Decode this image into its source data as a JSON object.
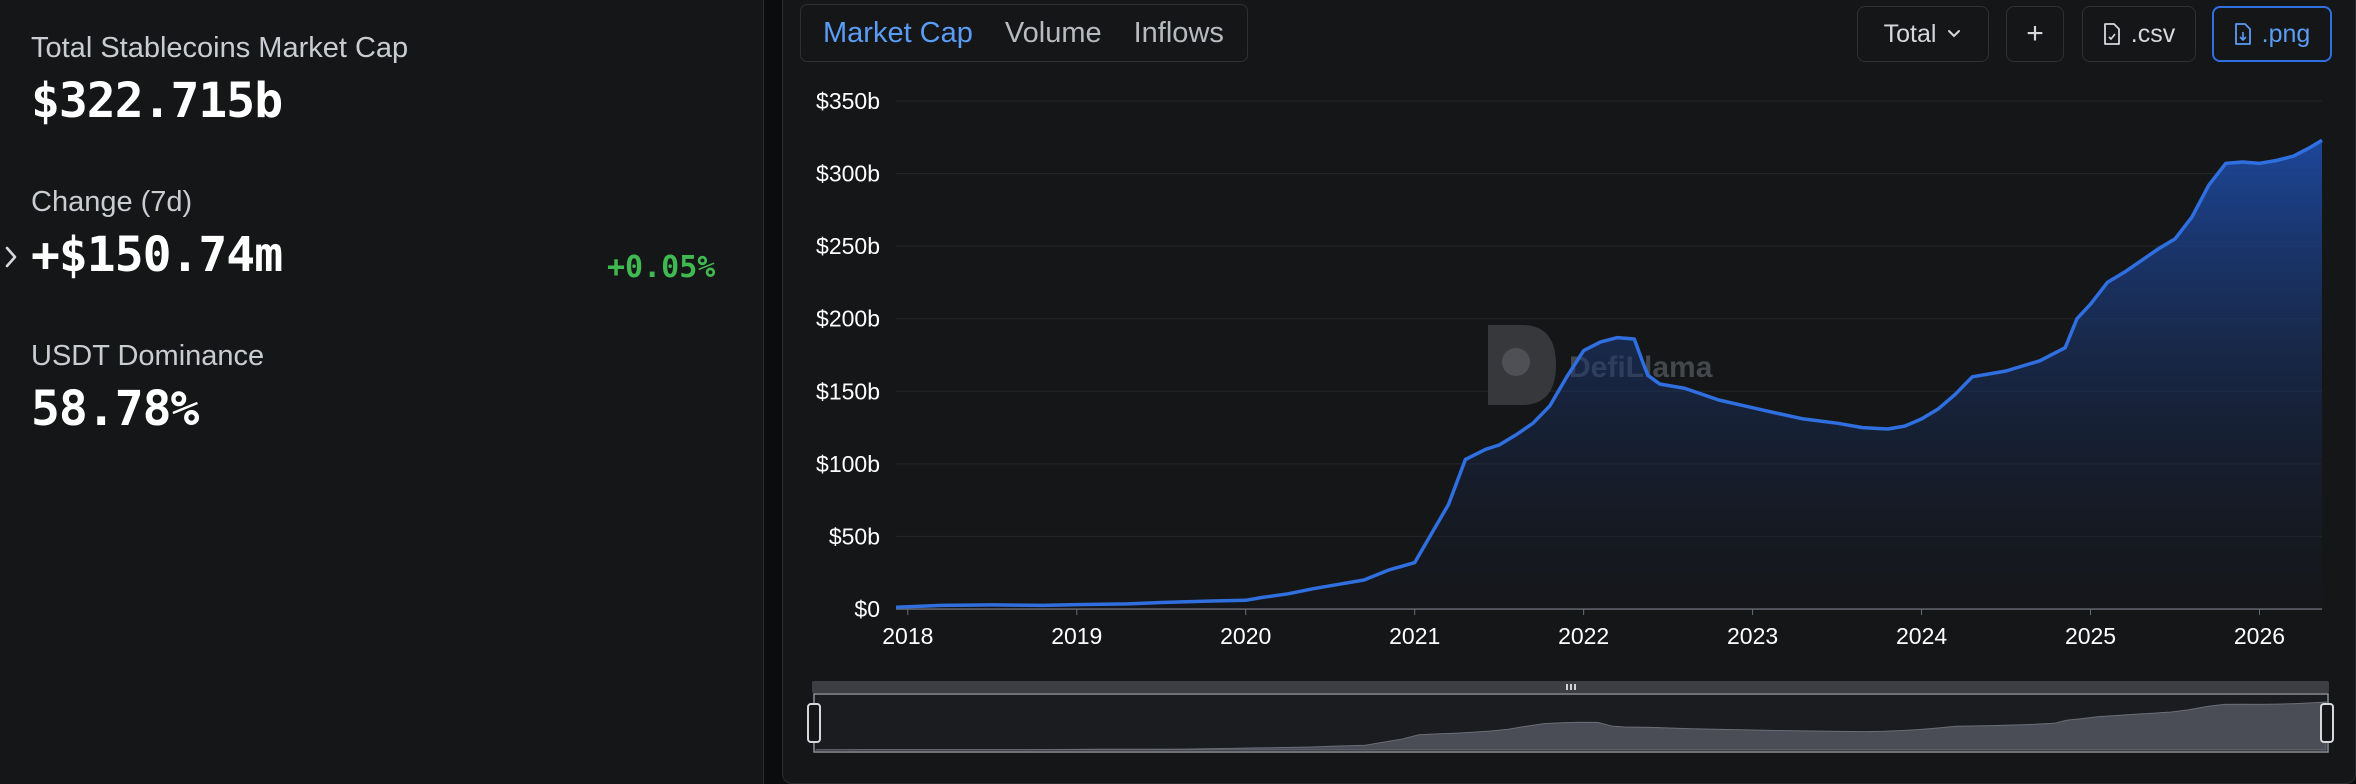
{
  "stats": {
    "market_cap": {
      "label": "Total Stablecoins Market Cap",
      "value": "$322.715b"
    },
    "change": {
      "label": "Change (7d)",
      "value": "+$150.74m",
      "pct": "+0.05%"
    },
    "dominance": {
      "label": "USDT Dominance",
      "value": "58.78%"
    }
  },
  "tabs": [
    {
      "label": "Market Cap",
      "active": true
    },
    {
      "label": "Volume",
      "active": false
    },
    {
      "label": "Inflows",
      "active": false
    }
  ],
  "controls": {
    "select_label": "Total",
    "add_label": "+",
    "csv_label": ".csv",
    "png_label": ".png"
  },
  "watermark": "DefiLlama",
  "colors": {
    "accent": "#2f6fe0",
    "line": "#2f6fe0",
    "positive": "#3fb950",
    "background": "#151618"
  },
  "chart_data": {
    "type": "area",
    "x_ticks": [
      "2018",
      "2019",
      "2020",
      "2021",
      "2022",
      "2023",
      "2024",
      "2025",
      "2026"
    ],
    "y_ticks": [
      "$0",
      "$50b",
      "$100b",
      "$150b",
      "$200b",
      "$250b",
      "$300b",
      "$350b"
    ],
    "ylim": [
      0,
      350
    ],
    "xlim": [
      2017.93,
      2026.37
    ],
    "grid": true,
    "series": [
      {
        "x": [
          2017.93,
          2018.2,
          2018.5,
          2018.8,
          2019.0,
          2019.3,
          2019.5,
          2019.8,
          2020.0,
          2020.1,
          2020.25,
          2020.4,
          2020.55,
          2020.7,
          2020.85,
          2021.0,
          2021.1,
          2021.2,
          2021.3,
          2021.42,
          2021.5,
          2021.6,
          2021.7,
          2021.8,
          2021.9,
          2022.0,
          2022.1,
          2022.2,
          2022.3,
          2022.35,
          2022.38,
          2022.45,
          2022.6,
          2022.8,
          2022.95,
          2023.1,
          2023.3,
          2023.5,
          2023.65,
          2023.8,
          2023.9,
          2024.0,
          2024.1,
          2024.2,
          2024.3,
          2024.5,
          2024.7,
          2024.85,
          2024.92,
          2025.0,
          2025.1,
          2025.2,
          2025.3,
          2025.4,
          2025.5,
          2025.6,
          2025.7,
          2025.8,
          2025.9,
          2026.0,
          2026.1,
          2026.2,
          2026.3,
          2026.37
        ],
        "y": [
          1.2,
          2.5,
          2.8,
          2.5,
          3.0,
          3.5,
          4.5,
          5.5,
          6.0,
          8.0,
          10.5,
          14.0,
          17.0,
          20.0,
          27.0,
          32.0,
          52.0,
          72.0,
          103.0,
          110.0,
          113.0,
          120.0,
          128.0,
          140.0,
          160.0,
          178.0,
          184.0,
          187.0,
          186.0,
          170.0,
          161.0,
          155.0,
          152.0,
          144.0,
          140.0,
          136.0,
          131.0,
          128.0,
          125.0,
          124.0,
          126.0,
          131.0,
          138.0,
          148.0,
          160.0,
          164.0,
          171.0,
          180.0,
          200.0,
          210.0,
          225.0,
          232.0,
          240.0,
          248.0,
          255.0,
          270.0,
          292.0,
          307.0,
          308.0,
          307.0,
          309.0,
          312.0,
          318.0,
          323.0
        ]
      }
    ]
  }
}
